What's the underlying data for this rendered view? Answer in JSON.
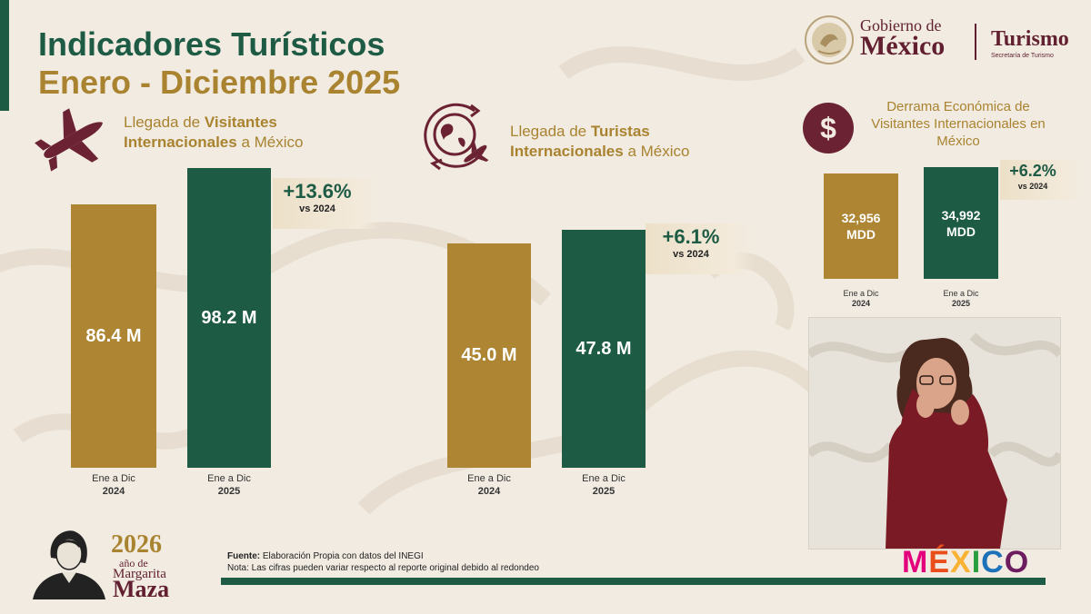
{
  "header": {
    "title_line1": "Indicadores Turísticos",
    "title_line2": "Enero - Diciembre 2025",
    "gov_line1": "Gobierno de",
    "gov_line2": "México",
    "agency": "Turismo",
    "agency_sub": "Secretaría de Turismo"
  },
  "sections": {
    "visitantes": {
      "label_pre": "Llegada de ",
      "label_bold": "Visitantes Internacionales",
      "label_post": " a México",
      "icon": "airplane-icon"
    },
    "turistas": {
      "label_pre": "Llegada de ",
      "label_bold": "Turistas Internacionales",
      "label_post": " a México",
      "icon": "globe-plane-icon"
    },
    "derrama": {
      "label": "Derrama Económica de Visitantes Internacionales en México",
      "icon": "dollar-icon"
    }
  },
  "colors": {
    "green": "#1e5b45",
    "gold": "#ad8533",
    "maroon": "#611f30"
  },
  "chart_data": [
    {
      "type": "bar",
      "categories": [
        "Ene a Dic 2024",
        "Ene a Dic 2025"
      ],
      "category_lines": [
        [
          "Ene a Dic",
          "2024"
        ],
        [
          "Ene a Dic",
          "2025"
        ]
      ],
      "values": [
        86.4,
        98.2
      ],
      "value_labels": [
        "86.4 M",
        "98.2 M"
      ],
      "colors": [
        "#ad8533",
        "#1e5b45"
      ],
      "change": "+13.6%",
      "change_ref": "vs 2024",
      "ylim": [
        0,
        98.2
      ]
    },
    {
      "type": "bar",
      "categories": [
        "Ene a Dic 2024",
        "Ene a Dic 2025"
      ],
      "category_lines": [
        [
          "Ene a Dic",
          "2024"
        ],
        [
          "Ene a Dic",
          "2025"
        ]
      ],
      "values": [
        45.0,
        47.8
      ],
      "value_labels": [
        "45.0 M",
        "47.8 M"
      ],
      "colors": [
        "#ad8533",
        "#1e5b45"
      ],
      "change": "+6.1%",
      "change_ref": "vs 2024",
      "ylim": [
        0,
        52
      ]
    },
    {
      "type": "bar",
      "categories": [
        "Ene a Dic 2024",
        "Ene a Dic 2025"
      ],
      "category_lines": [
        [
          "Ene a Dic",
          "2024"
        ],
        [
          "Ene a Dic",
          "2025"
        ]
      ],
      "values": [
        32956,
        34992
      ],
      "value_labels": [
        "32,956\nMDD",
        "34,992\nMDD"
      ],
      "colors": [
        "#ad8533",
        "#1e5b45"
      ],
      "change": "+6.2%",
      "change_ref": "vs 2024",
      "ylim": [
        0,
        39000
      ]
    }
  ],
  "footer": {
    "fuente_label": "Fuente:",
    "fuente_text": " Elaboración Propia con datos del INEGI",
    "nota": "Nota: Las cifras pueden variar respecto al reporte original debido al redondeo",
    "year_logo": "2026",
    "year_logo_sub": "año de",
    "year_logo_name1": "Margarita",
    "year_logo_name2": "Maza",
    "brand": "MÉXICO"
  }
}
